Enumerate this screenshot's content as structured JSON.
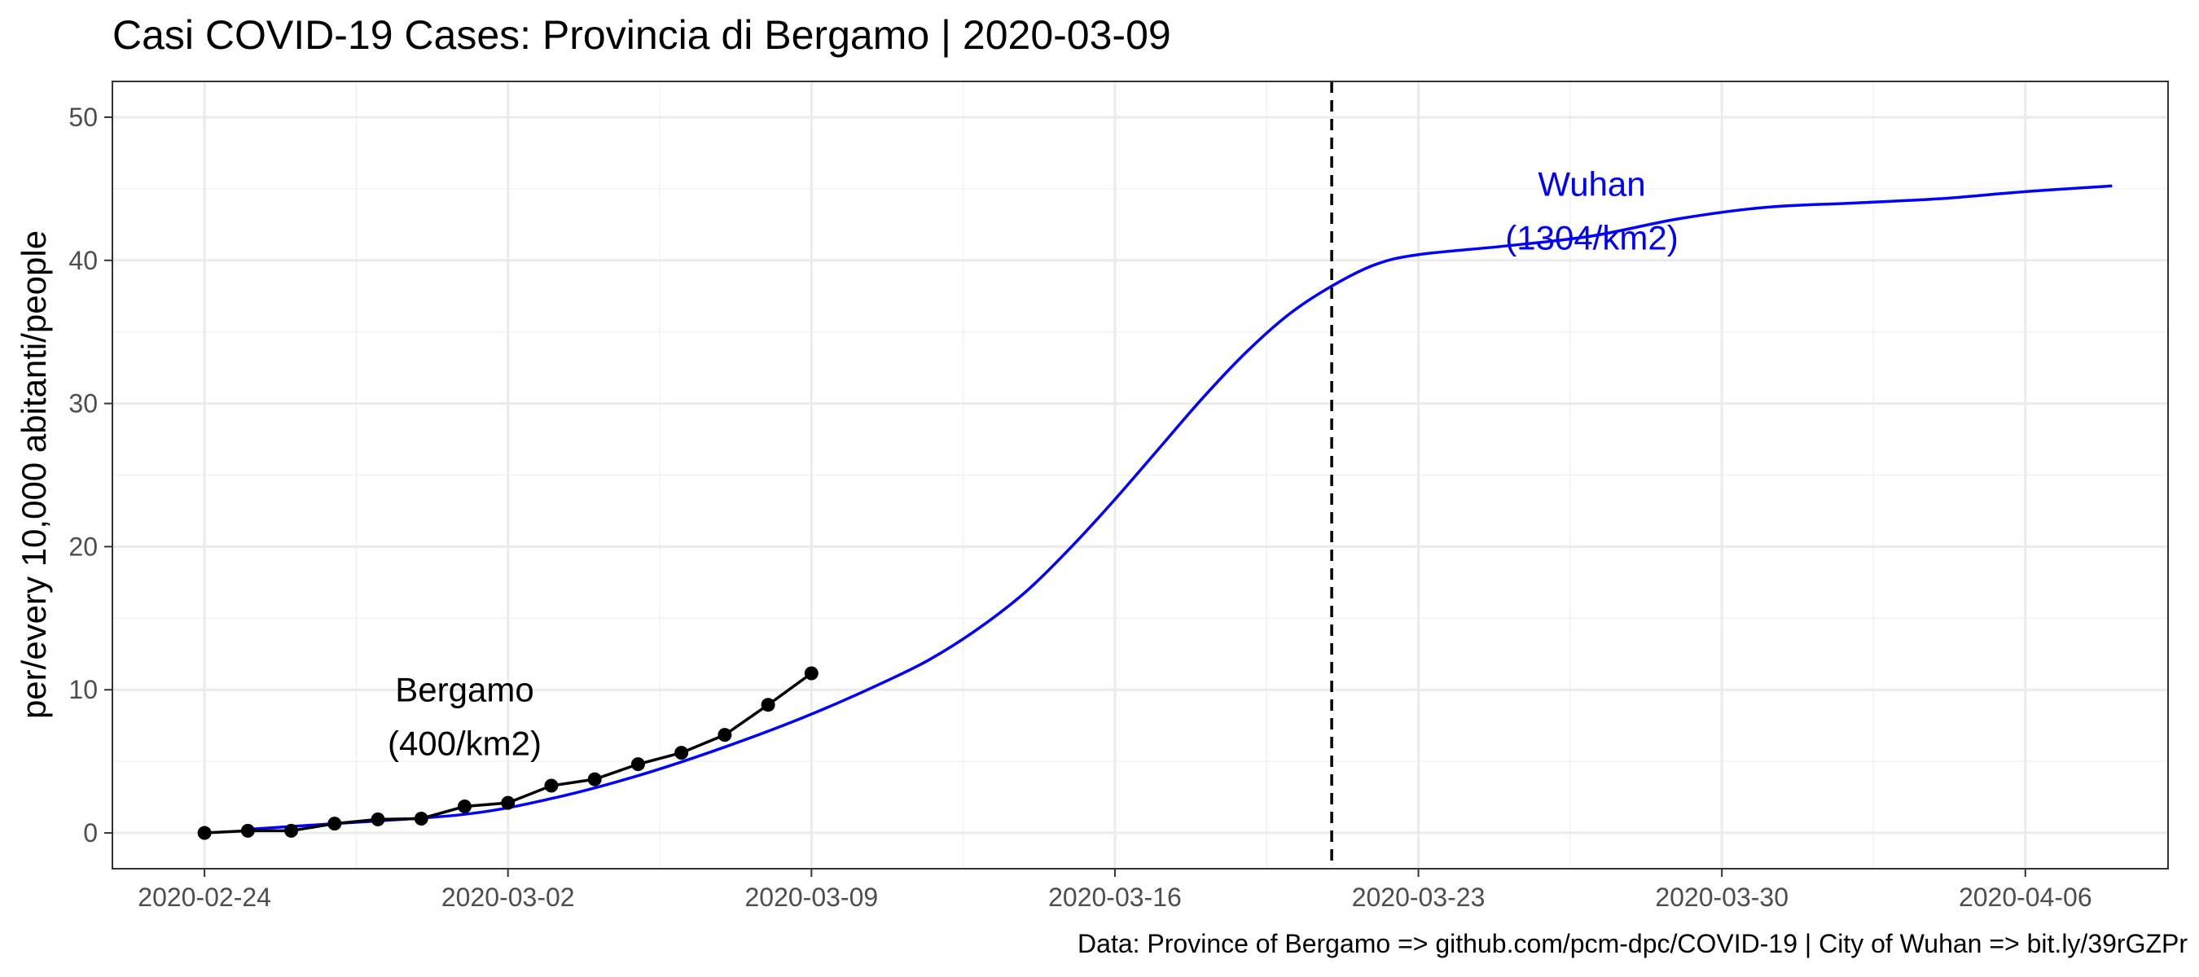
{
  "chart_data": {
    "type": "line",
    "title": "Casi COVID-19 Cases: Provincia di Bergamo | 2020-03-09",
    "xlabel": "",
    "ylabel": "per/every 10,000 abitanti/people",
    "caption": "Data: Province of Bergamo => github.com/pcm-dpc/COVID-19 | City of Wuhan => bit.ly/39rGZPr",
    "x_axis": {
      "type": "date",
      "range": [
        "2020-02-21T21:00",
        "2020-04-09T07:00"
      ],
      "ticks": [
        "2020-02-24",
        "2020-03-02",
        "2020-03-09",
        "2020-03-16",
        "2020-03-23",
        "2020-03-30",
        "2020-04-06"
      ],
      "tick_labels": [
        "2020-02-24",
        "2020-03-02",
        "2020-03-09",
        "2020-03-16",
        "2020-03-23",
        "2020-03-30",
        "2020-04-06"
      ]
    },
    "y_axis": {
      "range": [
        -2.5,
        52.5
      ],
      "ticks": [
        0,
        10,
        20,
        30,
        40,
        50
      ],
      "tick_labels": [
        "0",
        "10",
        "20",
        "30",
        "40",
        "50"
      ]
    },
    "grid": true,
    "series": [
      {
        "name": "Bergamo",
        "color": "#000000",
        "style": "line+points",
        "points": [
          [
            "2020-02-24",
            0.0
          ],
          [
            "2020-02-25",
            0.15
          ],
          [
            "2020-02-26",
            0.15
          ],
          [
            "2020-02-27",
            0.65
          ],
          [
            "2020-02-28",
            0.95
          ],
          [
            "2020-02-29",
            1.0
          ],
          [
            "2020-03-01",
            1.85
          ],
          [
            "2020-03-02",
            2.1
          ],
          [
            "2020-03-03",
            3.3
          ],
          [
            "2020-03-04",
            3.75
          ],
          [
            "2020-03-05",
            4.8
          ],
          [
            "2020-03-06",
            5.6
          ],
          [
            "2020-03-07",
            6.85
          ],
          [
            "2020-03-08",
            8.95
          ],
          [
            "2020-03-09",
            11.15
          ]
        ]
      },
      {
        "name": "Wuhan",
        "color": "#0000ff",
        "style": "smooth-line",
        "points": [
          [
            "2020-02-25",
            0.25
          ],
          [
            "2020-02-27",
            0.65
          ],
          [
            "2020-03-01",
            1.3
          ],
          [
            "2020-03-03",
            2.4
          ],
          [
            "2020-03-05",
            4.0
          ],
          [
            "2020-03-07",
            6.0
          ],
          [
            "2020-03-09",
            8.3
          ],
          [
            "2020-03-11",
            11.0
          ],
          [
            "2020-03-12",
            12.6
          ],
          [
            "2020-03-13",
            14.6
          ],
          [
            "2020-03-14",
            17.0
          ],
          [
            "2020-03-15",
            20.0
          ],
          [
            "2020-03-16",
            23.3
          ],
          [
            "2020-03-17",
            26.8
          ],
          [
            "2020-03-18",
            30.3
          ],
          [
            "2020-03-19",
            33.5
          ],
          [
            "2020-03-20",
            36.2
          ],
          [
            "2020-03-21",
            38.2
          ],
          [
            "2020-03-22",
            39.7
          ],
          [
            "2020-03-23",
            40.4
          ],
          [
            "2020-03-25",
            41.0
          ],
          [
            "2020-03-27",
            41.7
          ],
          [
            "2020-03-29",
            42.9
          ],
          [
            "2020-03-31",
            43.7
          ],
          [
            "2020-04-02",
            44.0
          ],
          [
            "2020-04-04",
            44.3
          ],
          [
            "2020-04-06",
            44.8
          ],
          [
            "2020-04-08",
            45.2
          ]
        ]
      }
    ],
    "reference_lines": [
      {
        "type": "vertical",
        "x": "2020-03-21",
        "style": "dashed",
        "color": "#000000"
      }
    ],
    "annotations": [
      {
        "lines": [
          "Bergamo",
          "(400/km2)"
        ],
        "x": "2020-03-01",
        "y": 9.2,
        "color": "#000000"
      },
      {
        "lines": [
          "Wuhan",
          "(1304/km2)"
        ],
        "x": "2020-03-27",
        "y": 44.5,
        "color": "#0000ff"
      }
    ]
  }
}
